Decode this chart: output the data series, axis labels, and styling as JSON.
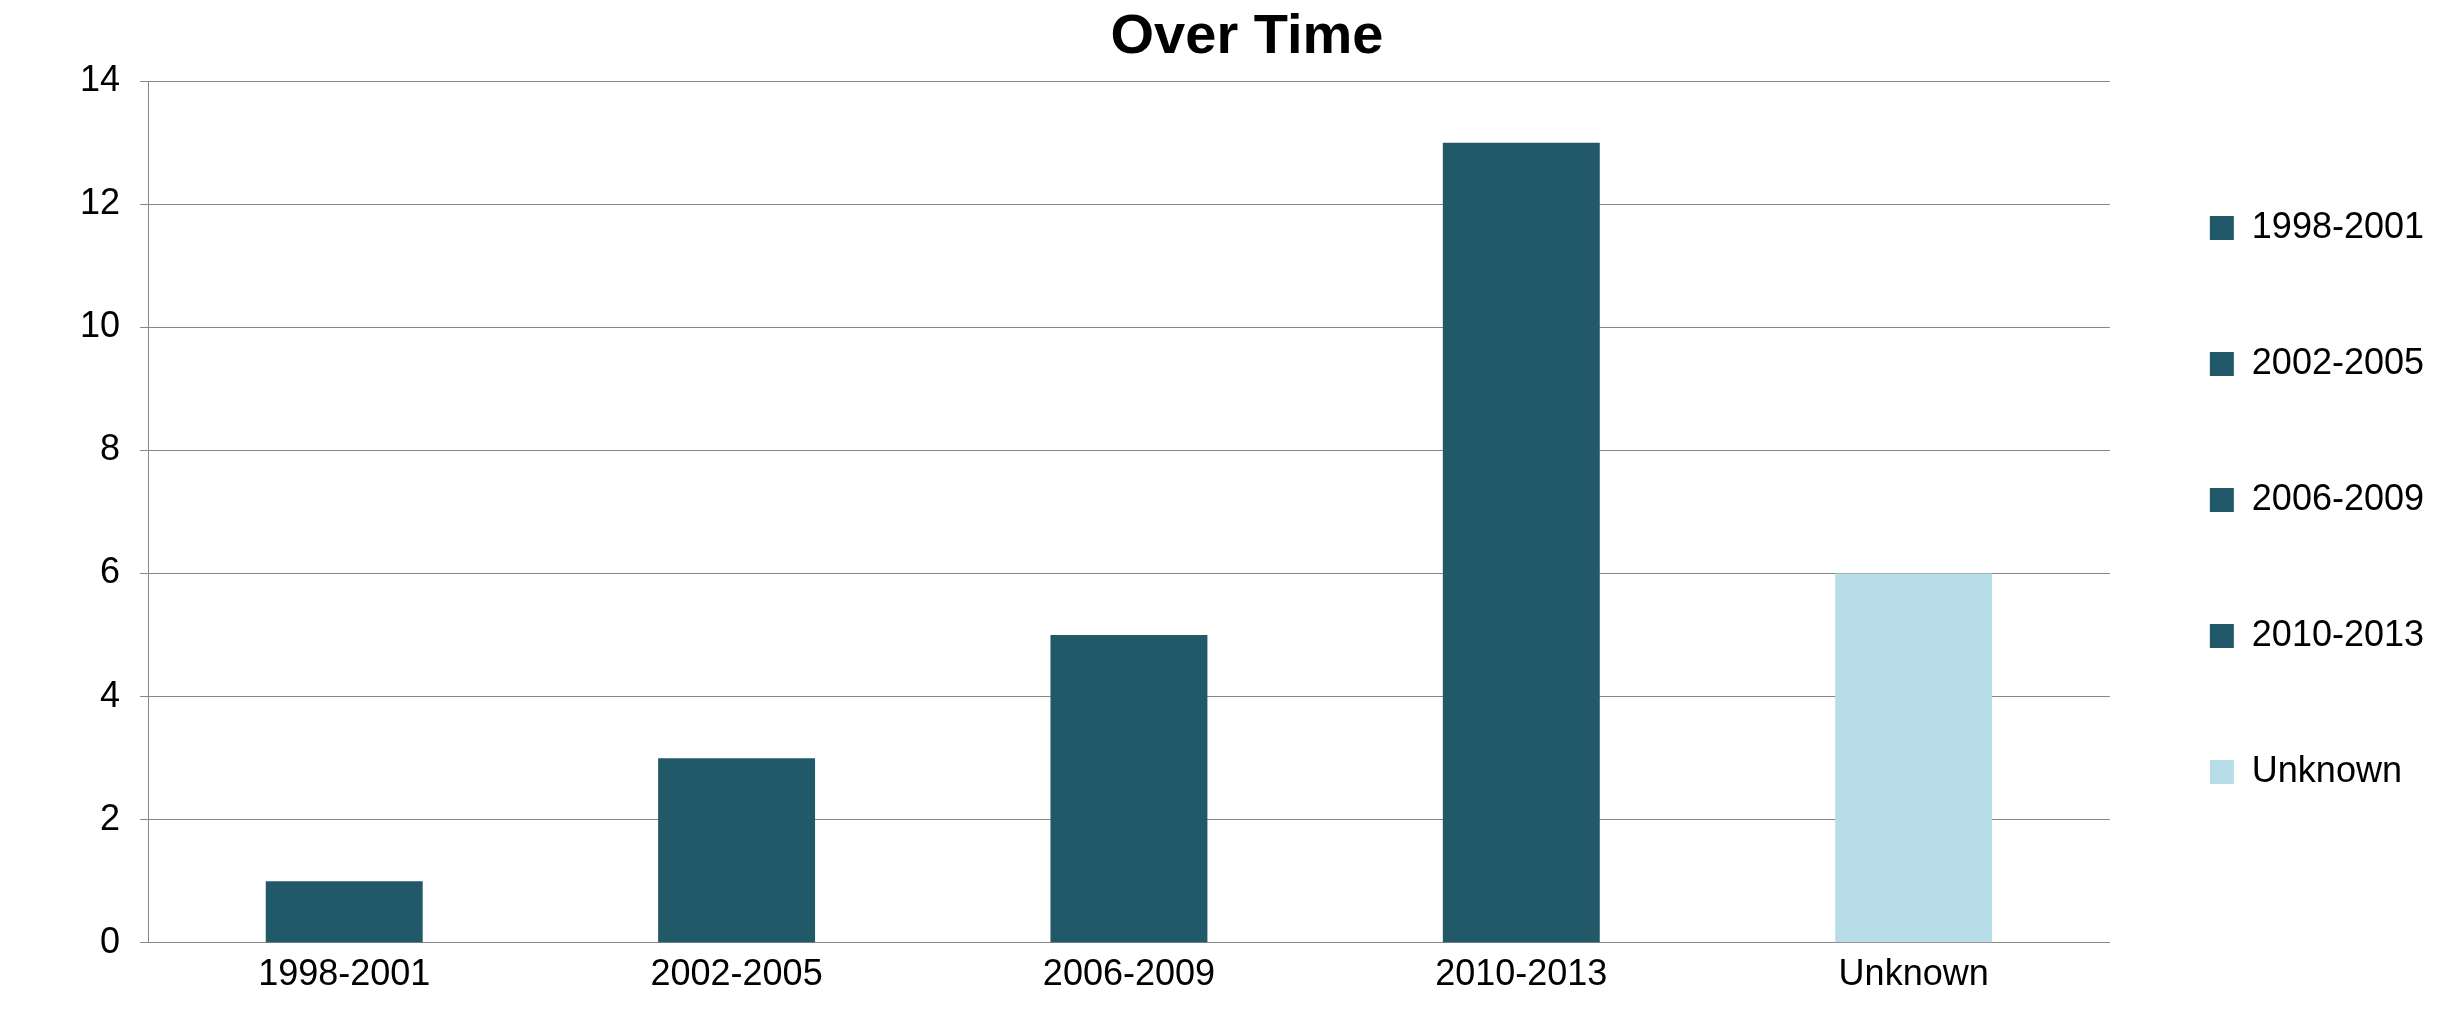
{
  "chart_data": {
    "type": "bar",
    "title": "Over Time",
    "categories": [
      "1998-2001",
      "2002-2005",
      "2006-2009",
      "2010-2013",
      "Unknown"
    ],
    "series": [
      {
        "name": "1998-2001",
        "color": "#215968",
        "values": [
          1,
          null,
          null,
          null,
          null
        ]
      },
      {
        "name": "2002-2005",
        "color": "#215968",
        "values": [
          null,
          3,
          null,
          null,
          null
        ]
      },
      {
        "name": "2006-2009",
        "color": "#215968",
        "values": [
          null,
          null,
          5,
          null,
          null
        ]
      },
      {
        "name": "2010-2013",
        "color": "#215968",
        "values": [
          null,
          null,
          null,
          13,
          null
        ]
      },
      {
        "name": "Unknown",
        "color": "#b7dde8",
        "values": [
          null,
          null,
          null,
          null,
          6
        ]
      }
    ],
    "ylim": [
      0,
      14
    ],
    "yticks": [
      0,
      2,
      4,
      6,
      8,
      10,
      12,
      14
    ],
    "grid": "y",
    "legend": "right"
  }
}
